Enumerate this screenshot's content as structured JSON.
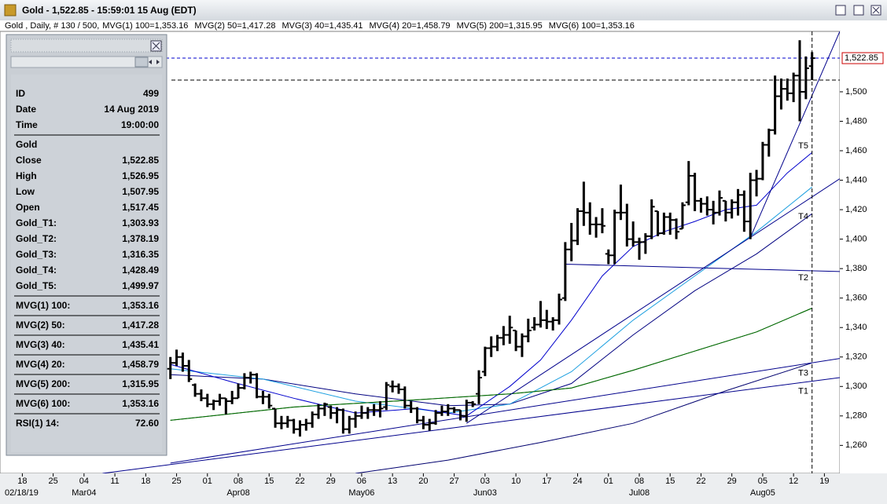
{
  "window": {
    "title": "Gold - 1,522.85 - 15:59:01  15 Aug (EDT)",
    "legend_prefix": "Gold , Daily, # 130 / 500,"
  },
  "data_window": {
    "groups": [
      [
        {
          "label": "ID",
          "value": "499"
        },
        {
          "label": "Date",
          "value": "14 Aug 2019"
        },
        {
          "label": "Time",
          "value": "19:00:00"
        }
      ],
      [
        {
          "label": "Gold"
        },
        {
          "label": "Close",
          "value": "1,522.85"
        },
        {
          "label": "High",
          "value": "1,526.95"
        },
        {
          "label": "Low",
          "value": "1,507.95"
        },
        {
          "label": "Open",
          "value": "1,517.45"
        },
        {
          "label": "Gold_T1:",
          "value": "1,303.93"
        },
        {
          "label": "Gold_T2:",
          "value": "1,378.19"
        },
        {
          "label": "Gold_T3:",
          "value": "1,316.35"
        },
        {
          "label": "Gold_T4:",
          "value": "1,428.49"
        },
        {
          "label": "Gold_T5:",
          "value": "1,499.97"
        }
      ],
      [
        {
          "label": "MVG(1) 100:",
          "value": "1,353.16"
        }
      ],
      [
        {
          "label": "MVG(2) 50:",
          "value": "1,417.28"
        }
      ],
      [
        {
          "label": "MVG(3) 40:",
          "value": "1,435.41"
        }
      ],
      [
        {
          "label": "MVG(4) 20:",
          "value": "1,458.79"
        }
      ],
      [
        {
          "label": "MVG(5) 200:",
          "value": "1,315.95"
        }
      ],
      [
        {
          "label": "MVG(6) 100:",
          "value": "1,353.16"
        }
      ],
      [
        {
          "label": "RSI(1) 14:",
          "value": "72.60"
        }
      ]
    ]
  },
  "chart_data": {
    "type": "ohlc",
    "color": "#000000",
    "ohlc": [
      [
        1312,
        1320,
        1305,
        1316
      ],
      [
        1316,
        1325,
        1314,
        1320
      ],
      [
        1320,
        1323,
        1310,
        1314
      ],
      [
        1314,
        1318,
        1303,
        1305
      ],
      [
        1301,
        1302,
        1293,
        1295
      ],
      [
        1295,
        1298,
        1290,
        1292
      ],
      [
        1292,
        1295,
        1286,
        1288
      ],
      [
        1288,
        1291,
        1284,
        1290
      ],
      [
        1290,
        1295,
        1287,
        1292
      ],
      [
        1292,
        1292,
        1281,
        1290
      ],
      [
        1290,
        1297,
        1288,
        1292
      ],
      [
        1292,
        1302,
        1292,
        1299
      ],
      [
        1299,
        1309,
        1298,
        1306
      ],
      [
        1306,
        1310,
        1302,
        1308
      ],
      [
        1308,
        1309,
        1292,
        1293
      ],
      [
        1293,
        1297,
        1288,
        1293
      ],
      [
        1293,
        1295,
        1285,
        1287
      ],
      [
        1285,
        1285,
        1272,
        1275
      ],
      [
        1275,
        1280,
        1271,
        1275
      ],
      [
        1275,
        1280,
        1272,
        1277
      ],
      [
        1277,
        1278,
        1268,
        1271
      ],
      [
        1271,
        1277,
        1266,
        1274
      ],
      [
        1274,
        1278,
        1270,
        1275
      ],
      [
        1275,
        1283,
        1272,
        1281
      ],
      [
        1281,
        1288,
        1278,
        1285
      ],
      [
        1285,
        1289,
        1280,
        1288
      ],
      [
        1286,
        1287,
        1278,
        1282
      ],
      [
        1282,
        1286,
        1275,
        1284
      ],
      [
        1284,
        1285,
        1268,
        1271
      ],
      [
        1271,
        1280,
        1268,
        1278
      ],
      [
        1278,
        1283,
        1272,
        1280
      ],
      [
        1280,
        1287,
        1278,
        1282
      ],
      [
        1282,
        1286,
        1278,
        1284
      ],
      [
        1284,
        1288,
        1280,
        1284
      ],
      [
        1284,
        1290,
        1279,
        1285
      ],
      [
        1286,
        1303,
        1284,
        1301
      ],
      [
        1300,
        1304,
        1296,
        1300
      ],
      [
        1300,
        1302,
        1295,
        1298
      ],
      [
        1298,
        1300,
        1285,
        1287
      ],
      [
        1287,
        1290,
        1282,
        1285
      ],
      [
        1285,
        1286,
        1275,
        1277
      ],
      [
        1277,
        1280,
        1271,
        1274
      ],
      [
        1274,
        1278,
        1270,
        1275
      ],
      [
        1275,
        1284,
        1274,
        1282
      ],
      [
        1282,
        1287,
        1280,
        1283
      ],
      [
        1283,
        1288,
        1280,
        1285
      ],
      [
        1285,
        1286,
        1282,
        1284
      ],
      [
        1284,
        1284,
        1277,
        1280
      ],
      [
        1280,
        1291,
        1276,
        1289
      ],
      [
        1289,
        1290,
        1286,
        1288
      ],
      [
        1295,
        1311,
        1288,
        1306
      ],
      [
        1310,
        1327,
        1307,
        1326
      ],
      [
        1326,
        1334,
        1320,
        1327
      ],
      [
        1327,
        1335,
        1324,
        1333
      ],
      [
        1333,
        1341,
        1328,
        1335
      ],
      [
        1335,
        1348,
        1329,
        1340
      ],
      [
        1338,
        1338,
        1324,
        1327
      ],
      [
        1327,
        1336,
        1320,
        1334
      ],
      [
        1334,
        1346,
        1330,
        1338
      ],
      [
        1340,
        1347,
        1338,
        1342
      ],
      [
        1342,
        1358,
        1340,
        1345
      ],
      [
        1345,
        1352,
        1339,
        1344
      ],
      [
        1344,
        1347,
        1338,
        1345
      ],
      [
        1345,
        1363,
        1342,
        1359
      ],
      [
        1360,
        1398,
        1358,
        1393
      ],
      [
        1393,
        1411,
        1385,
        1399
      ],
      [
        1399,
        1421,
        1396,
        1419
      ],
      [
        1419,
        1439,
        1409,
        1418
      ],
      [
        1418,
        1425,
        1403,
        1410
      ],
      [
        1410,
        1415,
        1401,
        1410
      ],
      [
        1410,
        1421,
        1404,
        1409
      ],
      [
        1390,
        1393,
        1383,
        1389
      ],
      [
        1389,
        1420,
        1383,
        1418
      ],
      [
        1418,
        1437,
        1413,
        1418
      ],
      [
        1418,
        1424,
        1395,
        1400
      ],
      [
        1400,
        1412,
        1395,
        1398
      ],
      [
        1398,
        1401,
        1386,
        1398
      ],
      [
        1398,
        1404,
        1390,
        1402
      ],
      [
        1402,
        1427,
        1400,
        1422
      ],
      [
        1419,
        1419,
        1402,
        1404
      ],
      [
        1404,
        1418,
        1403,
        1415
      ],
      [
        1415,
        1418,
        1403,
        1413
      ],
      [
        1413,
        1414,
        1400,
        1405
      ],
      [
        1407,
        1425,
        1407,
        1423
      ],
      [
        1425,
        1453,
        1423,
        1443
      ],
      [
        1443,
        1445,
        1419,
        1426
      ],
      [
        1426,
        1428,
        1418,
        1424
      ],
      [
        1424,
        1429,
        1416,
        1420
      ],
      [
        1420,
        1426,
        1410,
        1418
      ],
      [
        1418,
        1433,
        1416,
        1428
      ],
      [
        1426,
        1426,
        1412,
        1418
      ],
      [
        1418,
        1427,
        1414,
        1425
      ],
      [
        1425,
        1434,
        1416,
        1430
      ],
      [
        1430,
        1433,
        1405,
        1412
      ],
      [
        1412,
        1445,
        1400,
        1440
      ],
      [
        1440,
        1447,
        1429,
        1441
      ],
      [
        1441,
        1466,
        1440,
        1464
      ],
      [
        1464,
        1475,
        1456,
        1474
      ],
      [
        1474,
        1511,
        1471,
        1497
      ],
      [
        1497,
        1509,
        1488,
        1502
      ],
      [
        1502,
        1509,
        1494,
        1499
      ],
      [
        1499,
        1513,
        1493,
        1511
      ],
      [
        1511,
        1535,
        1480,
        1500
      ],
      [
        1500,
        1524,
        1495,
        1516
      ],
      [
        1517.45,
        1526.95,
        1507.95,
        1522.85
      ]
    ],
    "moving_averages": [
      {
        "name": "MVG(1) 100=1,353.16",
        "color": "#008000",
        "x": [
          0,
          20,
          40,
          55,
          65,
          75,
          85,
          95,
          104
        ],
        "values": [
          1277,
          1286,
          1291,
          1295,
          1299,
          1311,
          1324,
          1337,
          1353.16
        ]
      },
      {
        "name": "MVG(2) 50=1,417.28",
        "color": "#000080",
        "x": [
          0,
          15,
          30,
          45,
          55,
          65,
          75,
          85,
          95,
          104
        ],
        "values": [
          1308,
          1305,
          1295,
          1287,
          1288,
          1302,
          1335,
          1365,
          1390,
          1417.28
        ]
      },
      {
        "name": "MVG(3) 40=1,435.41",
        "color": "#1ea0e0",
        "x": [
          0,
          15,
          30,
          45,
          55,
          65,
          75,
          85,
          95,
          104
        ],
        "values": [
          1312,
          1305,
          1290,
          1282,
          1288,
          1310,
          1345,
          1375,
          1405,
          1435.41
        ]
      },
      {
        "name": "MVG(4) 20=1,458.79",
        "color": "#0000cc",
        "x": [
          0,
          10,
          20,
          30,
          40,
          48,
          55,
          60,
          65,
          70,
          75,
          80,
          85,
          90,
          95,
          100,
          104
        ],
        "values": [
          1315,
          1303,
          1292,
          1282,
          1285,
          1280,
          1300,
          1318,
          1345,
          1375,
          1395,
          1405,
          1412,
          1420,
          1423,
          1445,
          1458.79
        ]
      },
      {
        "name": "MVG(5) 200=1,315.95",
        "color": "#00006e",
        "x": [
          30,
          45,
          60,
          75,
          90,
          104
        ],
        "values": [
          1241,
          1250,
          1262,
          1275,
          1297,
          1315.95
        ]
      },
      {
        "name": "MVG(6) 100=1,353.16",
        "color": "#006400",
        "x": [
          0,
          20,
          40,
          55,
          65,
          75,
          85,
          95,
          104
        ],
        "values": [
          1277,
          1286,
          1291,
          1295,
          1299,
          1311,
          1324,
          1337,
          1353.16
        ]
      }
    ],
    "trendlines": [
      {
        "name": "T1",
        "color": "#00008b",
        "x": [
          -11,
          108.5
        ],
        "values": [
          1241,
          1306
        ]
      },
      {
        "name": "T2",
        "color": "#00008b",
        "x": [
          64,
          108.5
        ],
        "values": [
          1383,
          1378
        ]
      },
      {
        "name": "T3",
        "color": "#00008b",
        "x": [
          0,
          108.5
        ],
        "values": [
          1248,
          1319
        ]
      },
      {
        "name": "T4",
        "color": "#00008b",
        "x": [
          48,
          108.5
        ],
        "values": [
          1275,
          1441
        ]
      },
      {
        "name": "T5",
        "color": "#00008b",
        "x": [
          94,
          108.5
        ],
        "values": [
          1401,
          1541
        ]
      }
    ],
    "last_price": {
      "value": 1522.85,
      "label": "1,522.85"
    },
    "crosshair": {
      "x": 104,
      "value": 1507.95
    },
    "ylim": [
      1241,
      1541
    ],
    "yticks": [
      {
        "value": 1260,
        "label": "1,260"
      },
      {
        "value": 1280,
        "label": "1,280"
      },
      {
        "value": 1300,
        "label": "1,300"
      },
      {
        "value": 1320,
        "label": "1,320"
      },
      {
        "value": 1340,
        "label": "1,340"
      },
      {
        "value": 1360,
        "label": "1,360"
      },
      {
        "value": 1380,
        "label": "1,380"
      },
      {
        "value": 1400,
        "label": "1,400"
      },
      {
        "value": 1420,
        "label": "1,420"
      },
      {
        "value": 1440,
        "label": "1,440"
      },
      {
        "value": 1460,
        "label": "1,460"
      },
      {
        "value": 1480,
        "label": "1,480"
      },
      {
        "value": 1500,
        "label": "1,500"
      }
    ],
    "xlim": [
      -26.6,
      108.5
    ],
    "xticks": [
      {
        "value": -24,
        "label": "18"
      },
      {
        "value": -19,
        "label": "25"
      },
      {
        "value": -14,
        "label": "04"
      },
      {
        "value": -9,
        "label": "11"
      },
      {
        "value": -4,
        "label": "18"
      },
      {
        "value": 1,
        "label": "25"
      },
      {
        "value": 6,
        "label": "01"
      },
      {
        "value": 11,
        "label": "08"
      },
      {
        "value": 16,
        "label": "15"
      },
      {
        "value": 21,
        "label": "22"
      },
      {
        "value": 26,
        "label": "29"
      },
      {
        "value": 31,
        "label": "06"
      },
      {
        "value": 36,
        "label": "13"
      },
      {
        "value": 41,
        "label": "20"
      },
      {
        "value": 46,
        "label": "27"
      },
      {
        "value": 51,
        "label": "03"
      },
      {
        "value": 56,
        "label": "10"
      },
      {
        "value": 61,
        "label": "17"
      },
      {
        "value": 66,
        "label": "24"
      },
      {
        "value": 71,
        "label": "01"
      },
      {
        "value": 76,
        "label": "08"
      },
      {
        "value": 81,
        "label": "15"
      },
      {
        "value": 86,
        "label": "22"
      },
      {
        "value": 91,
        "label": "29"
      },
      {
        "value": 96,
        "label": "05"
      },
      {
        "value": 101,
        "label": "12"
      },
      {
        "value": 106,
        "label": "19"
      }
    ],
    "month_ticks": [
      {
        "value": -14,
        "label": "Mar04"
      },
      {
        "value": 11,
        "label": "Apr08"
      },
      {
        "value": 31,
        "label": "May06"
      },
      {
        "value": 51,
        "label": "Jun03"
      },
      {
        "value": 76,
        "label": "Jul08"
      },
      {
        "value": 96,
        "label": "Aug05"
      }
    ],
    "start_label": {
      "value": -24,
      "label": "02/18/19"
    }
  }
}
